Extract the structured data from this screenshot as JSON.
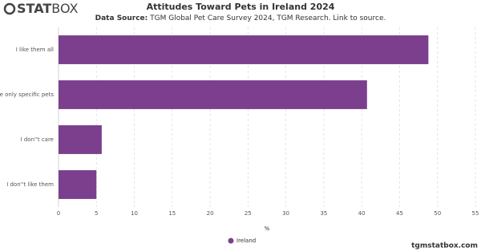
{
  "logo": {
    "bold": "STAT",
    "light": "BOX"
  },
  "footer": "tgmstatbox.com",
  "chart_data": {
    "type": "bar",
    "orientation": "horizontal",
    "title": "Attitudes Toward Pets in Ireland 2024",
    "source_label": "Data Source:",
    "source": "TGM Global Pet Care Survey 2024, TGM Research. Link to source.",
    "x_label": "%",
    "categories": [
      "I like them all",
      "I like only specific pets",
      "I don''t care",
      "I don''t like them"
    ],
    "series": [
      {
        "name": "Ireland",
        "color": "#7b3f8e",
        "values": [
          48.8,
          40.7,
          5.7,
          5.0
        ]
      }
    ],
    "xlim": [
      0,
      55
    ],
    "xticks": [
      0,
      5,
      10,
      15,
      20,
      25,
      30,
      35,
      40,
      45,
      50,
      55
    ],
    "grid": true,
    "legend": "bottom"
  }
}
